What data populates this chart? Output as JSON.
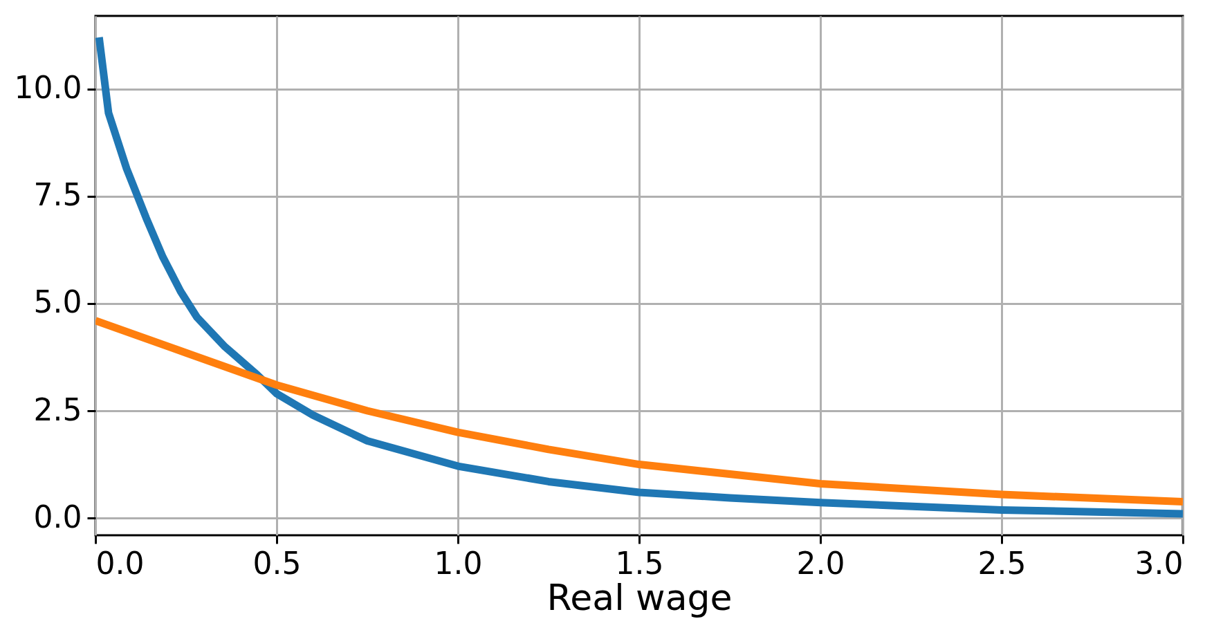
{
  "chart_data": {
    "type": "line",
    "xlabel": "Real wage",
    "xlim": [
      0,
      3
    ],
    "ylim": [
      -0.4,
      11.7
    ],
    "xticks": [
      {
        "value": 0,
        "label": "0.0"
      },
      0.5,
      {
        "value": 1,
        "label": "1.0"
      },
      1.5,
      {
        "value": 2,
        "label": "2.0"
      },
      2.5,
      {
        "value": 3,
        "label": "3.0"
      }
    ],
    "yticks": [
      {
        "value": 0,
        "label": "0.0"
      },
      2.5,
      {
        "value": 5,
        "label": "5.0"
      },
      7.5,
      {
        "value": 10,
        "label": "10.0"
      }
    ],
    "grid": true,
    "marker": "none",
    "line_style": "solid",
    "series": [
      {
        "color": "#1f77b4",
        "x": [
          0.01,
          0.036,
          0.086,
          0.14,
          0.186,
          0.235,
          0.28,
          0.355,
          0.446,
          0.5,
          0.6,
          0.75,
          1.0,
          1.25,
          1.5,
          1.75,
          2.0,
          2.5,
          3.0
        ],
        "values": [
          11.2,
          9.44,
          8.14,
          6.99,
          6.08,
          5.28,
          4.68,
          4.01,
          3.34,
          2.9,
          2.4,
          1.8,
          1.21,
          0.85,
          0.6,
          0.47,
          0.36,
          0.19,
          0.1
        ]
      },
      {
        "color": "#ff7f0e",
        "x": [
          0.0,
          0.25,
          0.5,
          0.75,
          1.0,
          1.25,
          1.5,
          2.0,
          2.5,
          3.0
        ],
        "values": [
          4.6,
          3.85,
          3.1,
          2.5,
          2.0,
          1.6,
          1.25,
          0.8,
          0.55,
          0.38
        ]
      }
    ]
  }
}
